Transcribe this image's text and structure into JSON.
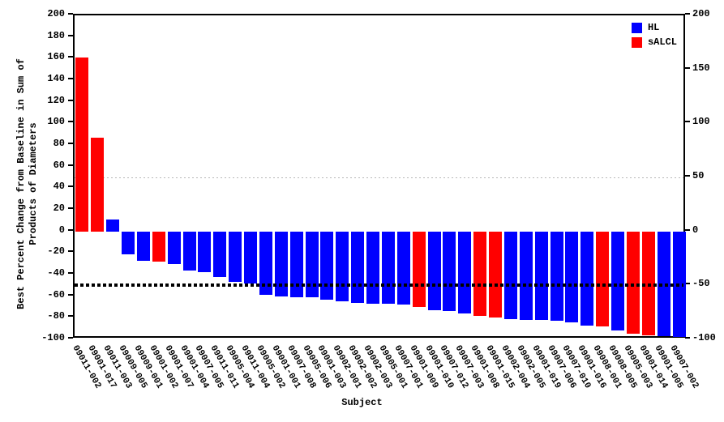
{
  "legend": {
    "items": [
      {
        "label": "HL",
        "color": "#0000ff"
      },
      {
        "label": "sALCL",
        "color": "#ff0000"
      }
    ]
  },
  "chart_data": {
    "type": "bar",
    "title": "",
    "xlabel": "Subject",
    "ylabel": "Best Percent Change from Baseline in Sum of Products of Diameters",
    "ylabel_lines": [
      "Best Percent Change from Baseline in Sum of",
      "Products of Diameters"
    ],
    "ylim": [
      -100,
      200
    ],
    "yticks_left": [
      200,
      180,
      160,
      140,
      120,
      100,
      80,
      60,
      40,
      20,
      0,
      -20,
      -40,
      -60,
      -80,
      -100
    ],
    "yticks_right": [
      200,
      150,
      100,
      50,
      0,
      -50,
      -100
    ],
    "grid": false,
    "legend_position": "top-right-inside",
    "categories": [
      "09011-002",
      "09001-017",
      "09011-003",
      "09009-005",
      "09009-001",
      "09001-002",
      "09001-007",
      "09001-004",
      "09007-005",
      "09011-011",
      "09005-004",
      "09011-004",
      "09005-002",
      "09001-001",
      "09007-008",
      "09005-006",
      "09001-003",
      "09002-001",
      "09002-002",
      "09002-003",
      "09005-001",
      "09007-001",
      "09001-009",
      "09001-010",
      "09007-012",
      "09007-003",
      "09001-008",
      "09001-015",
      "09002-004",
      "09002-005",
      "09001-019",
      "09007-006",
      "09007-010",
      "09001-016",
      "09008-001",
      "09008-005",
      "09005-003",
      "09001-014",
      "09001-005",
      "09007-002"
    ],
    "values": [
      161,
      87,
      11,
      -21,
      -27,
      -28,
      -30,
      -36,
      -38,
      -42,
      -47,
      -48,
      -59,
      -60,
      -61,
      -61,
      -63,
      -65,
      -66,
      -67,
      -67,
      -68,
      -70,
      -73,
      -74,
      -76,
      -78,
      -80,
      -81,
      -82,
      -82,
      -83,
      -84,
      -87,
      -88,
      -92,
      -95,
      -96,
      -97,
      -98
    ],
    "groups": [
      "sALCL",
      "sALCL",
      "HL",
      "HL",
      "HL",
      "sALCL",
      "HL",
      "HL",
      "HL",
      "HL",
      "HL",
      "HL",
      "HL",
      "HL",
      "HL",
      "HL",
      "HL",
      "HL",
      "HL",
      "HL",
      "HL",
      "HL",
      "sALCL",
      "HL",
      "HL",
      "HL",
      "sALCL",
      "sALCL",
      "HL",
      "HL",
      "HL",
      "HL",
      "HL",
      "HL",
      "sALCL",
      "HL",
      "sALCL",
      "sALCL",
      "HL",
      "HL"
    ],
    "group_colors": {
      "HL": "#0000ff",
      "sALCL": "#ff0000"
    },
    "reference_lines": [
      {
        "y": 50,
        "color": "#b8b8b8",
        "thickness": 1,
        "dash": [
          2,
          3
        ],
        "layer": "behind"
      },
      {
        "y": -50,
        "color": "#000000",
        "thickness": 4,
        "dash": [
          4,
          3
        ],
        "layer": "front"
      }
    ]
  }
}
